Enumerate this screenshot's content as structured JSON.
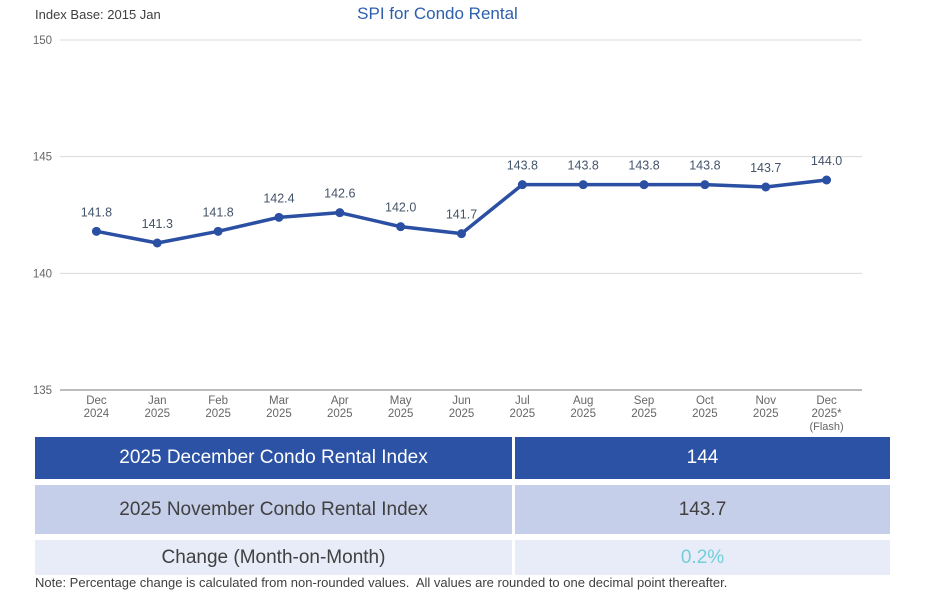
{
  "header": {
    "index_base": "Index Base: 2015 Jan",
    "title": "SPI for Condo Rental",
    "title_color": "#2e5fac"
  },
  "chart_data": {
    "type": "line",
    "title": "SPI for Condo Rental",
    "categories": [
      {
        "month": "Dec",
        "year": "2024",
        "extra": ""
      },
      {
        "month": "Jan",
        "year": "2025",
        "extra": ""
      },
      {
        "month": "Feb",
        "year": "2025",
        "extra": ""
      },
      {
        "month": "Mar",
        "year": "2025",
        "extra": ""
      },
      {
        "month": "Apr",
        "year": "2025",
        "extra": ""
      },
      {
        "month": "May",
        "year": "2025",
        "extra": ""
      },
      {
        "month": "Jun",
        "year": "2025",
        "extra": ""
      },
      {
        "month": "Jul",
        "year": "2025",
        "extra": ""
      },
      {
        "month": "Aug",
        "year": "2025",
        "extra": ""
      },
      {
        "month": "Sep",
        "year": "2025",
        "extra": ""
      },
      {
        "month": "Oct",
        "year": "2025",
        "extra": ""
      },
      {
        "month": "Nov",
        "year": "2025",
        "extra": ""
      },
      {
        "month": "Dec",
        "year": "2025*",
        "extra": "(Flash)"
      }
    ],
    "values": [
      141.8,
      141.3,
      141.8,
      142.4,
      142.6,
      142.0,
      141.7,
      143.8,
      143.8,
      143.8,
      143.8,
      143.7,
      144.0
    ],
    "data_labels": [
      "141.8",
      "141.3",
      "141.8",
      "142.4",
      "142.6",
      "142.0",
      "141.7",
      "143.8",
      "143.8",
      "143.8",
      "143.8",
      "143.7",
      "144.0"
    ],
    "ylim": [
      135,
      150
    ],
    "yticks": [
      135,
      140,
      145,
      150
    ],
    "grid": true,
    "legend": "none",
    "line_color": "#2b4fa2",
    "marker_color": "#2b4fa2",
    "data_label_color": "#44546a",
    "gridline_color": "#d9d9d9",
    "axis_line_color": "#a6a6a6",
    "tick_label_color": "#666666"
  },
  "table": {
    "rows": [
      {
        "label": "2025 December Condo Rental Index",
        "value": "144",
        "bg": "#2b52a5",
        "label_color": "#ffffff",
        "value_color": "#ffffff"
      },
      {
        "label": "2025 November Condo Rental Index",
        "value": "143.7",
        "bg": "#c5cfe9",
        "label_color": "#404040",
        "value_color": "#404040"
      },
      {
        "label": "Change (Month-on-Month)",
        "value": "0.2%",
        "bg": "#e8ecf8",
        "label_color": "#404040",
        "value_color": "#72ced8"
      }
    ]
  },
  "note": "Note: Percentage change is calculated from non-rounded values.  All values are rounded to one decimal point thereafter."
}
